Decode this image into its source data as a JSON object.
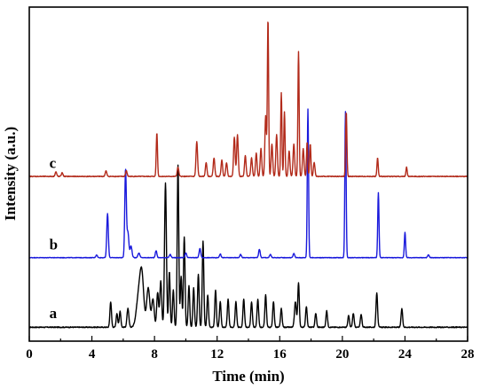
{
  "chart_data": {
    "type": "line",
    "title": "",
    "xlabel": "Time (min)",
    "ylabel": "Intensity (a.u.)",
    "xlim": [
      0,
      28
    ],
    "x_ticks": [
      0,
      4,
      8,
      12,
      16,
      20,
      24,
      28
    ],
    "x_tick_labels": [
      "0",
      "4",
      "8",
      "12",
      "16",
      "20",
      "24",
      "28"
    ],
    "y_ticks_shown": false,
    "grid": false,
    "legend": "none",
    "series": [
      {
        "name": "a",
        "color": "#000000",
        "baseline": 0.3,
        "label_x": 0.6,
        "label_y": 0.5,
        "noise": 0.01,
        "peaks": [
          [
            5.2,
            0.55,
            0.05
          ],
          [
            5.6,
            0.3,
            0.05
          ],
          [
            5.8,
            0.35,
            0.05
          ],
          [
            6.3,
            0.4,
            0.06
          ],
          [
            7.0,
            0.7,
            0.15
          ],
          [
            7.2,
            0.95,
            0.12
          ],
          [
            7.6,
            0.85,
            0.1
          ],
          [
            7.9,
            0.6,
            0.08
          ],
          [
            8.2,
            0.75,
            0.06
          ],
          [
            8.4,
            1.0,
            0.06
          ],
          [
            8.7,
            3.1,
            0.06
          ],
          [
            8.95,
            1.2,
            0.05
          ],
          [
            9.2,
            0.8,
            0.05
          ],
          [
            9.5,
            3.5,
            0.05
          ],
          [
            9.7,
            1.1,
            0.05
          ],
          [
            9.9,
            1.95,
            0.05
          ],
          [
            10.2,
            0.9,
            0.05
          ],
          [
            10.5,
            0.85,
            0.05
          ],
          [
            10.8,
            1.15,
            0.05
          ],
          [
            11.1,
            1.85,
            0.05
          ],
          [
            11.4,
            0.7,
            0.05
          ],
          [
            11.9,
            0.8,
            0.05
          ],
          [
            12.2,
            0.55,
            0.05
          ],
          [
            12.7,
            0.6,
            0.05
          ],
          [
            13.2,
            0.55,
            0.05
          ],
          [
            13.7,
            0.6,
            0.05
          ],
          [
            14.2,
            0.55,
            0.05
          ],
          [
            14.6,
            0.6,
            0.05
          ],
          [
            15.1,
            0.7,
            0.05
          ],
          [
            15.6,
            0.55,
            0.05
          ],
          [
            16.1,
            0.4,
            0.05
          ],
          [
            17.0,
            0.55,
            0.06
          ],
          [
            17.2,
            0.95,
            0.05
          ],
          [
            17.7,
            0.45,
            0.05
          ],
          [
            18.3,
            0.3,
            0.05
          ],
          [
            19.0,
            0.35,
            0.05
          ],
          [
            20.4,
            0.25,
            0.05
          ],
          [
            20.7,
            0.3,
            0.05
          ],
          [
            21.2,
            0.28,
            0.05
          ],
          [
            22.2,
            0.75,
            0.05
          ],
          [
            23.8,
            0.4,
            0.05
          ]
        ]
      },
      {
        "name": "b",
        "color": "#1a1adc",
        "baseline": 1.8,
        "label_x": 0.6,
        "label_y": 1.98,
        "noise": 0.006,
        "peaks": [
          [
            4.3,
            0.06,
            0.05
          ],
          [
            5.0,
            0.95,
            0.05
          ],
          [
            6.15,
            1.9,
            0.05
          ],
          [
            6.3,
            0.55,
            0.06
          ],
          [
            6.5,
            0.25,
            0.06
          ],
          [
            7.0,
            0.1,
            0.06
          ],
          [
            8.1,
            0.15,
            0.05
          ],
          [
            9.0,
            0.07,
            0.05
          ],
          [
            10.0,
            0.1,
            0.05
          ],
          [
            10.9,
            0.2,
            0.05
          ],
          [
            12.2,
            0.08,
            0.05
          ],
          [
            13.5,
            0.07,
            0.05
          ],
          [
            14.7,
            0.18,
            0.05
          ],
          [
            15.4,
            0.07,
            0.05
          ],
          [
            16.9,
            0.09,
            0.05
          ],
          [
            17.8,
            3.2,
            0.04
          ],
          [
            20.2,
            3.15,
            0.04
          ],
          [
            22.3,
            1.4,
            0.04
          ],
          [
            24.0,
            0.55,
            0.04
          ],
          [
            25.5,
            0.06,
            0.05
          ]
        ]
      },
      {
        "name": "c",
        "color": "#b22a1a",
        "baseline": 3.55,
        "label_x": 0.6,
        "label_y": 3.73,
        "noise": 0.008,
        "peaks": [
          [
            1.7,
            0.1,
            0.05
          ],
          [
            2.1,
            0.08,
            0.05
          ],
          [
            4.9,
            0.12,
            0.05
          ],
          [
            6.2,
            0.12,
            0.05
          ],
          [
            8.15,
            0.95,
            0.04
          ],
          [
            9.5,
            0.2,
            0.05
          ],
          [
            10.7,
            0.75,
            0.05
          ],
          [
            11.3,
            0.3,
            0.05
          ],
          [
            11.8,
            0.4,
            0.05
          ],
          [
            12.3,
            0.35,
            0.05
          ],
          [
            12.6,
            0.3,
            0.05
          ],
          [
            13.1,
            0.85,
            0.05
          ],
          [
            13.3,
            0.9,
            0.05
          ],
          [
            13.8,
            0.45,
            0.05
          ],
          [
            14.2,
            0.4,
            0.05
          ],
          [
            14.5,
            0.5,
            0.05
          ],
          [
            14.8,
            0.6,
            0.05
          ],
          [
            15.1,
            1.3,
            0.05
          ],
          [
            15.25,
            3.4,
            0.04
          ],
          [
            15.5,
            0.7,
            0.05
          ],
          [
            15.8,
            0.9,
            0.05
          ],
          [
            16.1,
            1.8,
            0.04
          ],
          [
            16.3,
            1.4,
            0.04
          ],
          [
            16.6,
            0.55,
            0.05
          ],
          [
            16.9,
            0.7,
            0.05
          ],
          [
            17.2,
            2.7,
            0.04
          ],
          [
            17.5,
            0.6,
            0.05
          ],
          [
            17.75,
            0.75,
            0.04
          ],
          [
            17.95,
            0.7,
            0.04
          ],
          [
            18.2,
            0.3,
            0.05
          ],
          [
            20.25,
            1.4,
            0.04
          ],
          [
            22.25,
            0.4,
            0.04
          ],
          [
            24.1,
            0.2,
            0.04
          ]
        ]
      }
    ]
  }
}
